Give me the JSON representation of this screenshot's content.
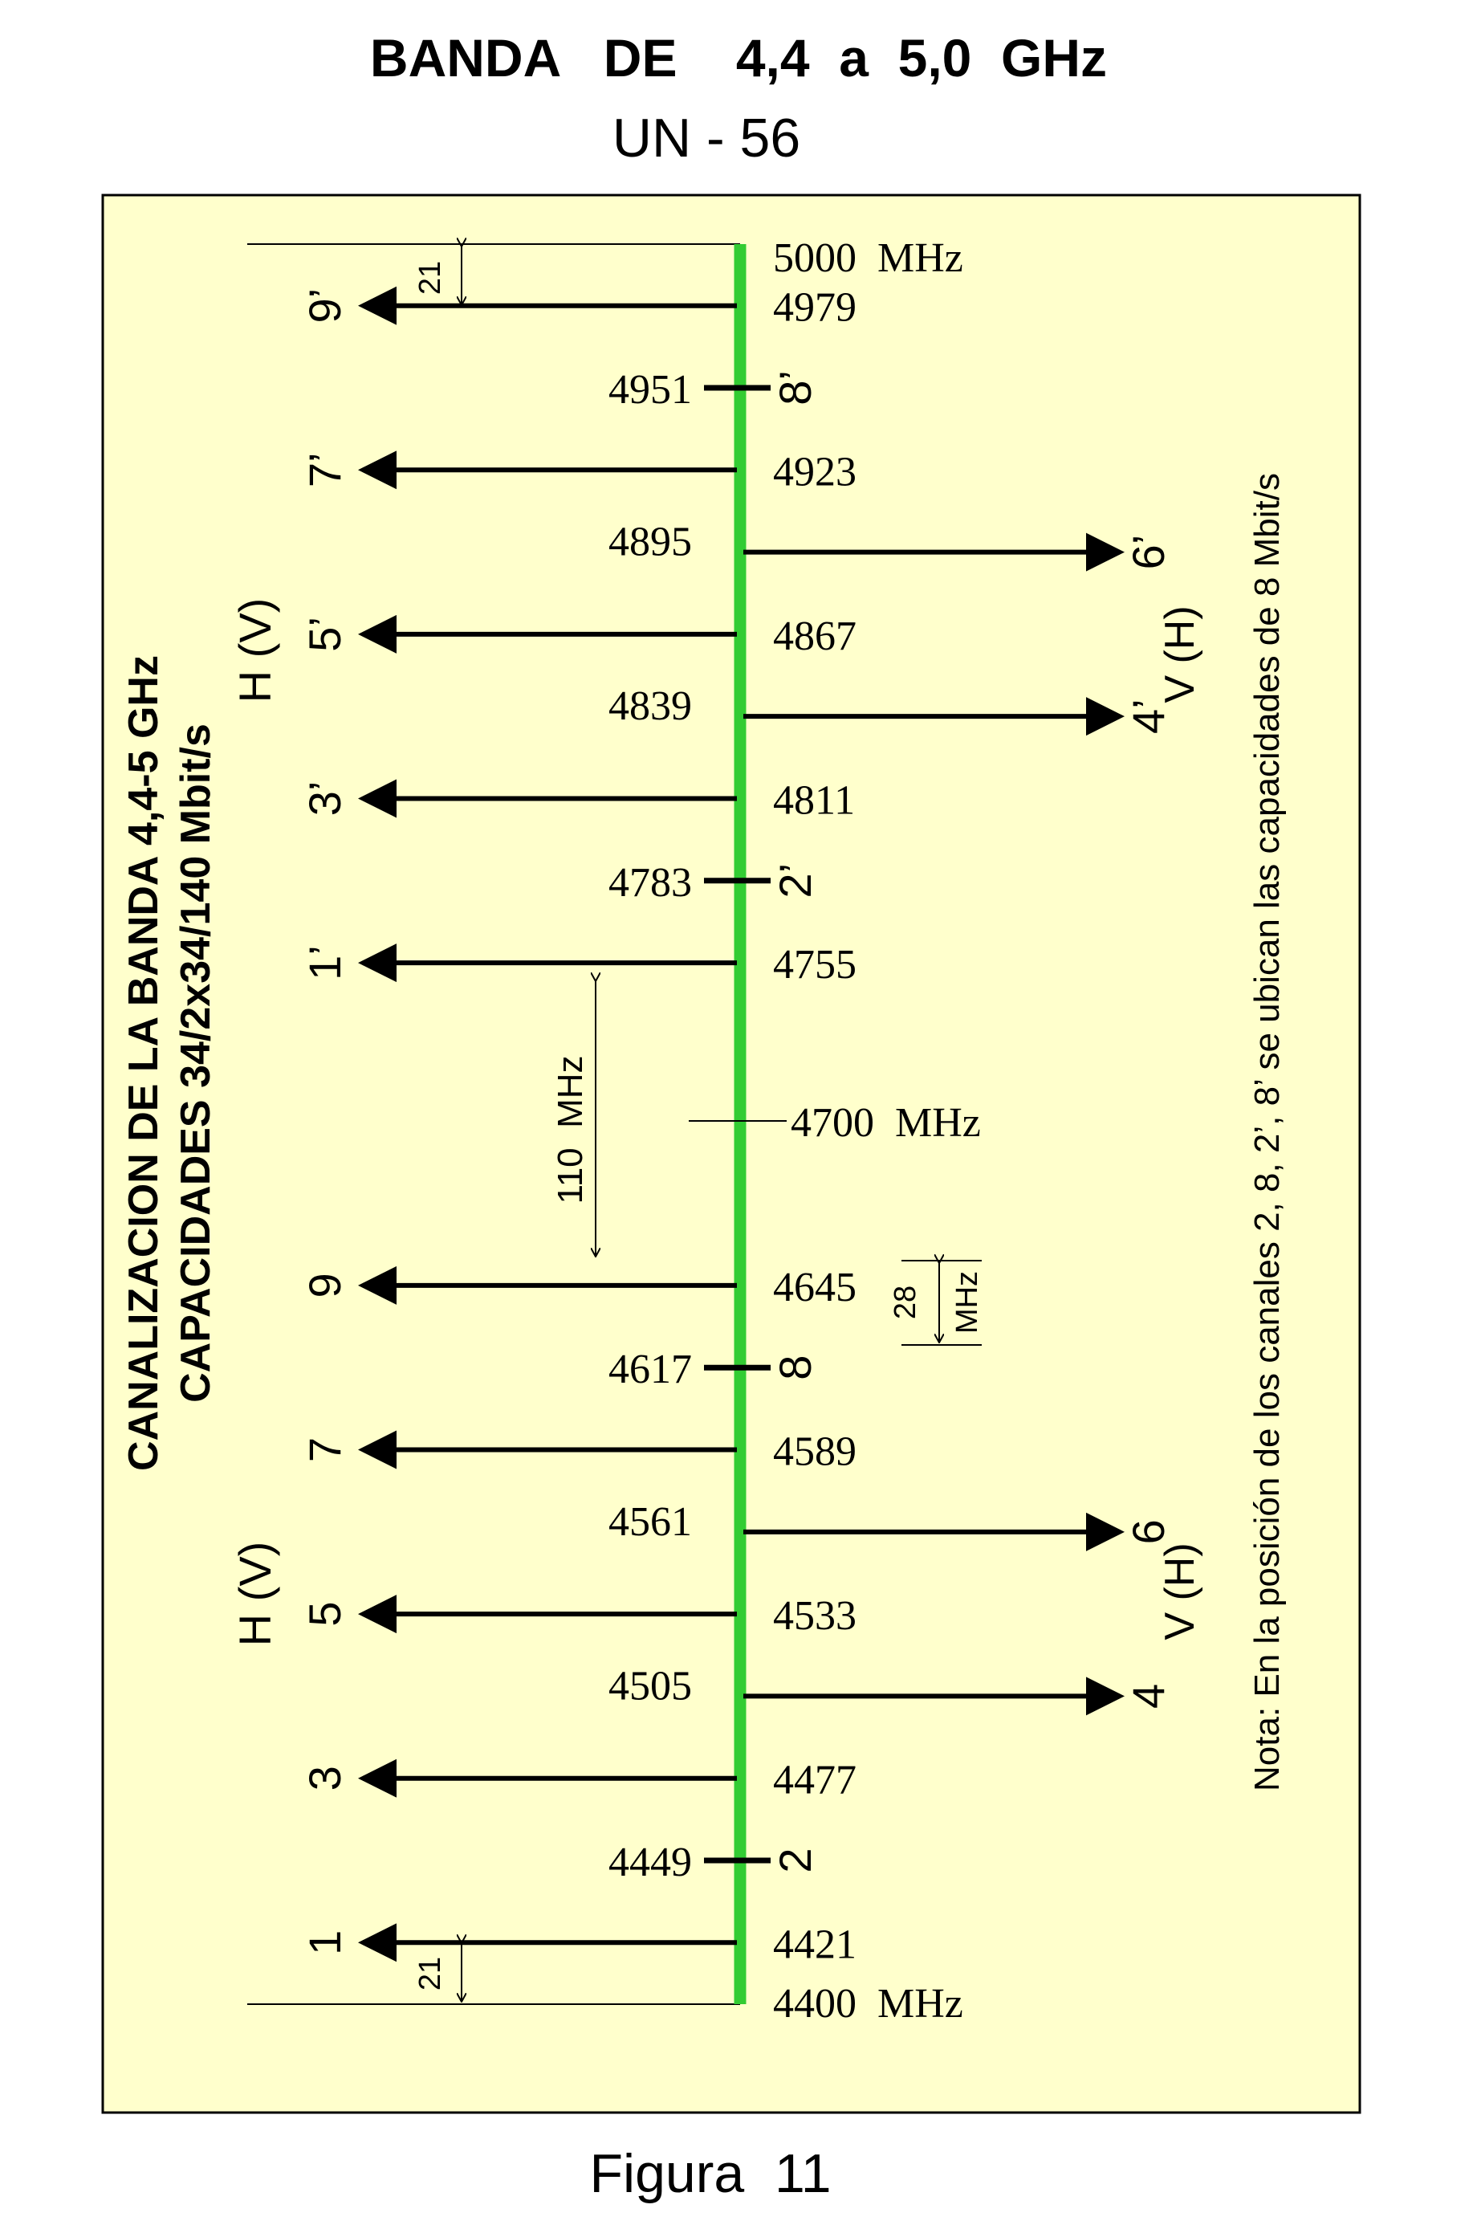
{
  "title": "BANDA   DE    4,4  a  5,0  GHz",
  "subtitle": "UN - 56",
  "figure_label": "Figura  11",
  "diagram_heading_line1": "CANALIZACION DE LA BANDA 4,4-5 GHz",
  "diagram_heading_line2": "CAPACIDADES 34/2x34/140 Mbit/s",
  "note": "Nota: En la posición de los canales 2, 8, 2’, 8’ se ubican las capacidades de 8 Mbit/s",
  "colors": {
    "panel_background": "#ffffcc",
    "center_line": "#33cc33",
    "lines": "#000000"
  },
  "band_edges": {
    "upper": "5000  MHz",
    "lower": "4400  MHz",
    "center": "4700  MHz"
  },
  "spacing_labels": {
    "edge_gap": "21",
    "center_gap": "110  MHz",
    "channel_gap_value": "28",
    "channel_gap_unit": "MHz"
  },
  "polarization_labels": {
    "left_upper": "H (V)",
    "left_lower": "H (V)",
    "right_upper": "V (H)",
    "right_lower": "V (H)"
  },
  "channels": {
    "upper_left": [
      {
        "name": "9’",
        "freq": "4979"
      },
      {
        "name": "7’",
        "freq": "4923"
      },
      {
        "name": "5’",
        "freq": "4867"
      },
      {
        "name": "3’",
        "freq": "4811"
      },
      {
        "name": "1’",
        "freq": "4755"
      }
    ],
    "upper_right": [
      {
        "name": "6’",
        "freq": "4895"
      },
      {
        "name": "4’",
        "freq": "4839"
      }
    ],
    "upper_small": [
      {
        "name": "8’",
        "freq": "4951"
      },
      {
        "name": "2’",
        "freq": "4783"
      }
    ],
    "lower_left": [
      {
        "name": "9",
        "freq": "4645"
      },
      {
        "name": "7",
        "freq": "4589"
      },
      {
        "name": "5",
        "freq": "4533"
      },
      {
        "name": "3",
        "freq": "4477"
      },
      {
        "name": "1",
        "freq": "4421"
      }
    ],
    "lower_right": [
      {
        "name": "6",
        "freq": "4561"
      },
      {
        "name": "4",
        "freq": "4505"
      }
    ],
    "lower_small": [
      {
        "name": "8",
        "freq": "4617"
      },
      {
        "name": "2",
        "freq": "4449"
      }
    ]
  }
}
